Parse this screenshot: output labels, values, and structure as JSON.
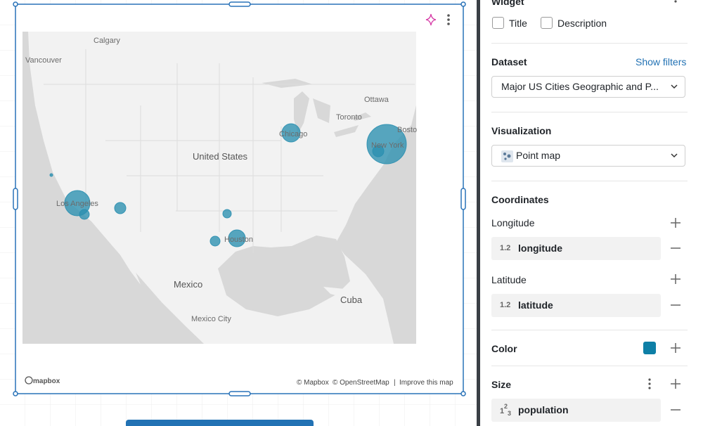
{
  "map": {
    "labels": {
      "calgary": "Calgary",
      "vancouver": "Vancouver",
      "ottawa": "Ottawa",
      "toronto": "Toronto",
      "boston": "Bosto",
      "chicago": "Chicago",
      "new_york": "New York",
      "united_states": "United States",
      "los_angeles": "Los Angeles",
      "houston": "Houston",
      "mexico": "Mexico",
      "cuba": "Cuba",
      "mexico_city": "Mexico City"
    },
    "attribution": {
      "logo": "mapbox",
      "mapbox": "© Mapbox",
      "osm": "© OpenStreetMap",
      "separator": "|",
      "improve": "Improve this map"
    }
  },
  "panel": {
    "widget": {
      "title": "Widget",
      "options": [
        "Title",
        "Description"
      ]
    },
    "dataset": {
      "title": "Dataset",
      "action": "Show filters",
      "value": "Major US Cities Geographic and P..."
    },
    "visualization": {
      "title": "Visualization",
      "value": "Point map"
    },
    "coordinates": {
      "title": "Coordinates",
      "longitude": {
        "label": "Longitude",
        "type": "1.2",
        "field": "longitude"
      },
      "latitude": {
        "label": "Latitude",
        "type": "1.2",
        "field": "latitude"
      }
    },
    "color": {
      "label": "Color"
    },
    "size": {
      "label": "Size",
      "type": [
        "1",
        "2",
        "3"
      ],
      "field": "population"
    }
  }
}
